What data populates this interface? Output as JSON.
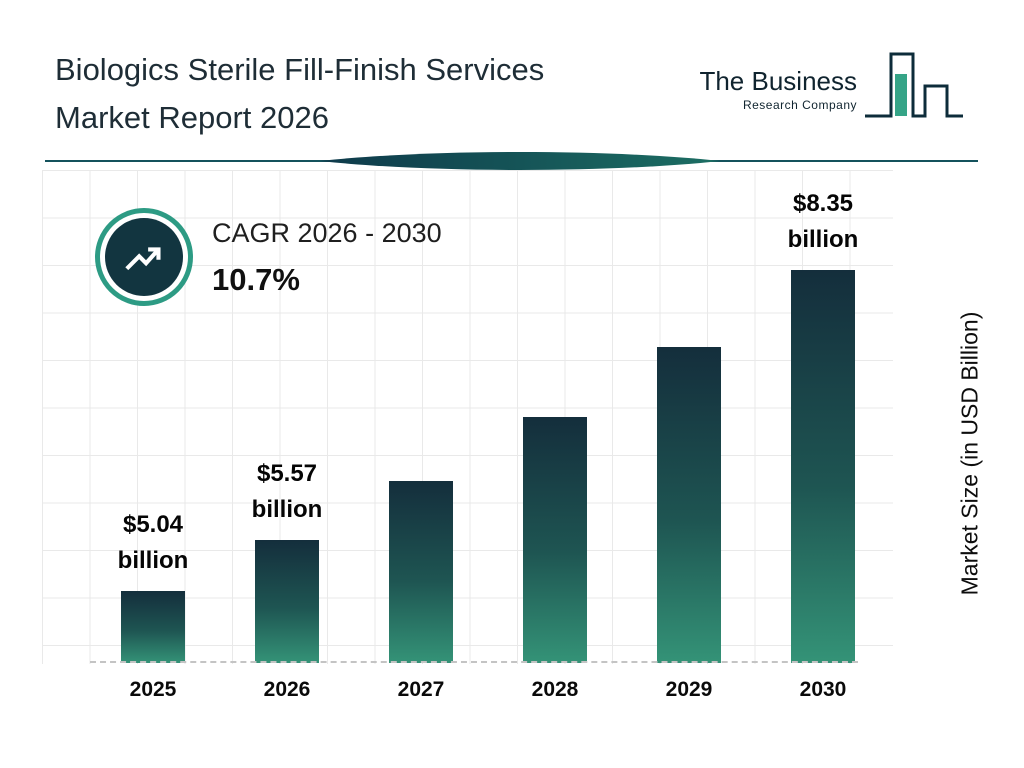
{
  "header": {
    "title_line1": "Biologics Sterile Fill-Finish Services",
    "title_line2": "Market Report 2026",
    "logo_line1": "The Business",
    "logo_line2": "Research Company"
  },
  "cagr": {
    "label": "CAGR 2026 - 2030",
    "value": "10.7%"
  },
  "chart_data": {
    "type": "bar",
    "title": "Biologics Sterile Fill-Finish Services Market Report 2026",
    "categories": [
      "2025",
      "2026",
      "2027",
      "2028",
      "2029",
      "2030"
    ],
    "values": [
      5.04,
      5.57,
      6.17,
      6.83,
      7.56,
      8.35
    ],
    "bar_labels": [
      {
        "amount": "$5.04",
        "unit": "billion"
      },
      {
        "amount": "$5.57",
        "unit": "billion"
      },
      null,
      null,
      null,
      {
        "amount": "$8.35",
        "unit": "billion"
      }
    ],
    "xlabel": "",
    "ylabel": "Market Size (in USD Billion)",
    "ylim": [
      4.3,
      9.4
    ],
    "grid": true,
    "legend": false
  },
  "colors": {
    "bar_gradient_top": "#142e3c",
    "bar_gradient_mid": "#1e5552",
    "bar_gradient_bottom": "#349377",
    "cagr_ring": "#2d9b84",
    "cagr_circle": "#123540",
    "divider": "#14525c",
    "grid_line": "#e9e9e9"
  }
}
